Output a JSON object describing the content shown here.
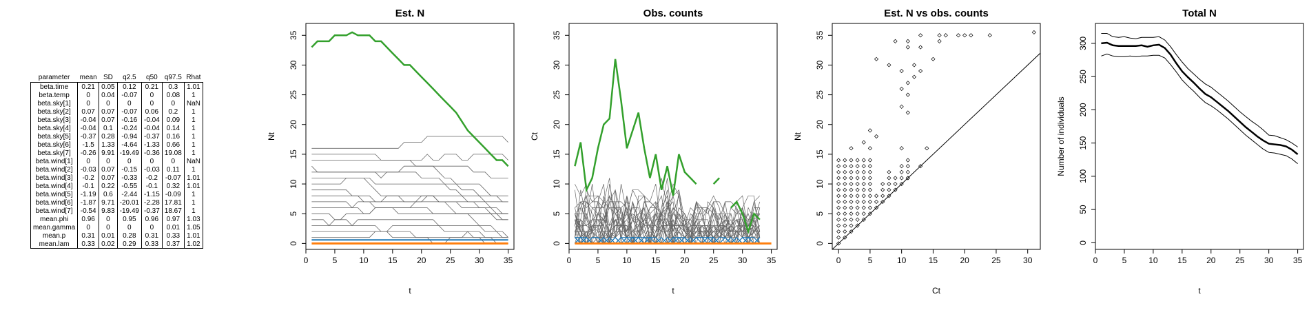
{
  "table": {
    "headers": [
      "parameter",
      "mean",
      "SD",
      "q2.5",
      "q50",
      "q97.5",
      "Rhat"
    ],
    "rows": [
      [
        "beta.time",
        "0.21",
        "0.05",
        "0.12",
        "0.21",
        "0.3",
        "1.01"
      ],
      [
        "beta.temp",
        "0",
        "0.04",
        "-0.07",
        "0",
        "0.08",
        "1"
      ],
      [
        "beta.sky[1]",
        "0",
        "0",
        "0",
        "0",
        "0",
        "NaN"
      ],
      [
        "beta.sky[2]",
        "0.07",
        "0.07",
        "-0.07",
        "0.06",
        "0.2",
        "1"
      ],
      [
        "beta.sky[3]",
        "-0.04",
        "0.07",
        "-0.16",
        "-0.04",
        "0.09",
        "1"
      ],
      [
        "beta.sky[4]",
        "-0.04",
        "0.1",
        "-0.24",
        "-0.04",
        "0.14",
        "1"
      ],
      [
        "beta.sky[5]",
        "-0.37",
        "0.28",
        "-0.94",
        "-0.37",
        "0.16",
        "1"
      ],
      [
        "beta.sky[6]",
        "-1.5",
        "1.33",
        "-4.64",
        "-1.33",
        "0.66",
        "1"
      ],
      [
        "beta.sky[7]",
        "-0.26",
        "9.91",
        "-19.49",
        "-0.36",
        "19.08",
        "1"
      ],
      [
        "beta.wind[1]",
        "0",
        "0",
        "0",
        "0",
        "0",
        "NaN"
      ],
      [
        "beta.wind[2]",
        "-0.03",
        "0.07",
        "-0.15",
        "-0.03",
        "0.11",
        "1"
      ],
      [
        "beta.wind[3]",
        "-0.2",
        "0.07",
        "-0.33",
        "-0.2",
        "-0.07",
        "1.01"
      ],
      [
        "beta.wind[4]",
        "-0.1",
        "0.22",
        "-0.55",
        "-0.1",
        "0.32",
        "1.01"
      ],
      [
        "beta.wind[5]",
        "-1.19",
        "0.6",
        "-2.44",
        "-1.15",
        "-0.09",
        "1"
      ],
      [
        "beta.wind[6]",
        "-1.87",
        "9.71",
        "-20.01",
        "-2.28",
        "17.81",
        "1"
      ],
      [
        "beta.wind[7]",
        "-0.54",
        "9.83",
        "-19.49",
        "-0.37",
        "18.67",
        "1"
      ],
      [
        "mean.phi",
        "0.96",
        "0",
        "0.95",
        "0.96",
        "0.97",
        "1.03"
      ],
      [
        "mean.gamma",
        "0",
        "0",
        "0",
        "0",
        "0.01",
        "1.05"
      ],
      [
        "mean.p",
        "0.31",
        "0.01",
        "0.28",
        "0.31",
        "0.33",
        "1.01"
      ],
      [
        "mean.lam",
        "0.33",
        "0.02",
        "0.29",
        "0.33",
        "0.37",
        "1.02"
      ]
    ]
  },
  "colors": {
    "green": "#33a02c",
    "orange": "#ff7f0e",
    "blue": "#1f77b4",
    "gray": "#555555",
    "black": "#000000"
  },
  "chart_data": [
    {
      "type": "line",
      "title": "Est. N",
      "xlabel": "t",
      "ylabel": "Nt",
      "xlim": [
        0,
        36
      ],
      "ylim": [
        -1,
        37
      ],
      "xticks": [
        0,
        5,
        10,
        15,
        20,
        25,
        30,
        35
      ],
      "yticks": [
        0,
        5,
        10,
        15,
        20,
        25,
        30,
        35
      ],
      "highlight": {
        "x": [
          1,
          2,
          3,
          4,
          5,
          6,
          7,
          8,
          9,
          10,
          11,
          12,
          13,
          14,
          15,
          16,
          17,
          18,
          19,
          20,
          21,
          22,
          23,
          24,
          25,
          26,
          27,
          28,
          29,
          30,
          31,
          32,
          33,
          34,
          35
        ],
        "y": [
          33,
          34,
          34,
          34,
          35,
          35,
          35,
          35.5,
          35,
          35,
          35,
          34,
          34,
          33,
          32,
          31,
          30,
          30,
          29,
          28,
          27,
          26,
          25,
          24,
          23,
          22,
          20.5,
          19,
          18,
          17,
          16,
          15,
          14,
          14,
          13
        ]
      },
      "background_levels": [
        16,
        15,
        14,
        13,
        12,
        11,
        10,
        9,
        8,
        7,
        6,
        5,
        4,
        3,
        2,
        1
      ]
    },
    {
      "type": "line",
      "title": "Obs. counts",
      "xlabel": "t",
      "ylabel": "Ct",
      "xlim": [
        0,
        36
      ],
      "ylim": [
        -1,
        37
      ],
      "xticks": [
        0,
        5,
        10,
        15,
        20,
        25,
        30,
        35
      ],
      "yticks": [
        0,
        5,
        10,
        15,
        20,
        25,
        30,
        35
      ],
      "highlight_segments": [
        {
          "x": [
            1,
            2,
            3,
            4,
            5,
            6,
            7,
            8,
            9,
            10,
            11,
            12,
            13,
            14,
            15,
            16,
            17,
            18,
            19,
            20,
            21,
            22
          ],
          "y": [
            13,
            17,
            9,
            11,
            16,
            20,
            21,
            31,
            24,
            16,
            19,
            22,
            16,
            11,
            15,
            9,
            13,
            8,
            15,
            12,
            11,
            10
          ]
        },
        {
          "x": [
            25,
            26
          ],
          "y": [
            10,
            11
          ]
        },
        {
          "x": [
            28,
            29,
            30,
            31,
            32,
            33
          ],
          "y": [
            6,
            7,
            5,
            2,
            5,
            4
          ]
        }
      ]
    },
    {
      "type": "scatter",
      "title": "Est. N vs obs. counts",
      "xlabel": "Ct",
      "ylabel": "Nt",
      "xlim": [
        -1,
        32
      ],
      "ylim": [
        -1,
        37
      ],
      "xticks": [
        0,
        5,
        10,
        15,
        20,
        25,
        30
      ],
      "yticks": [
        0,
        5,
        10,
        15,
        20,
        25,
        30,
        35
      ],
      "points": [
        [
          9,
          34
        ],
        [
          11,
          34
        ],
        [
          13,
          35
        ],
        [
          16,
          35
        ],
        [
          17,
          35
        ],
        [
          19,
          35
        ],
        [
          20,
          35
        ],
        [
          21,
          35
        ],
        [
          24,
          35
        ],
        [
          31,
          35.5
        ],
        [
          11,
          33
        ],
        [
          13,
          33
        ],
        [
          16,
          34
        ],
        [
          6,
          31
        ],
        [
          8,
          30
        ],
        [
          12,
          30
        ],
        [
          15,
          31
        ],
        [
          10,
          29
        ],
        [
          13,
          29
        ],
        [
          12,
          28
        ],
        [
          11,
          27
        ],
        [
          10,
          26
        ],
        [
          11,
          25
        ],
        [
          10,
          23
        ],
        [
          11,
          22
        ],
        [
          5,
          19
        ],
        [
          6,
          18
        ],
        [
          4,
          17
        ],
        [
          2,
          16
        ],
        [
          5,
          16
        ],
        [
          10,
          16
        ],
        [
          14,
          16
        ],
        [
          11,
          11
        ],
        [
          13,
          13
        ]
      ],
      "ref_line": [
        [
          -1,
          -1
        ],
        [
          32,
          32
        ]
      ]
    },
    {
      "type": "line",
      "title": "Total N",
      "xlabel": "t",
      "ylabel": "Number of individuals",
      "xlim": [
        0,
        36
      ],
      "ylim": [
        -10,
        330
      ],
      "xticks": [
        0,
        5,
        10,
        15,
        20,
        25,
        30,
        35
      ],
      "yticks": [
        0,
        50,
        100,
        150,
        200,
        250,
        300
      ],
      "series": [
        {
          "y": [
            300,
            301,
            297,
            296,
            296,
            296,
            296,
            297,
            295,
            297,
            298,
            293,
            283,
            270,
            258,
            249,
            241,
            232,
            224,
            219,
            212,
            205,
            198,
            190,
            182,
            174,
            167,
            160,
            154,
            149,
            148,
            147,
            145,
            140,
            133
          ]
        },
        {
          "y": [
            315,
            315,
            310,
            309,
            310,
            308,
            307,
            309,
            309,
            309,
            310,
            305,
            295,
            283,
            272,
            262,
            254,
            246,
            239,
            234,
            227,
            220,
            213,
            205,
            197,
            190,
            183,
            177,
            170,
            162,
            161,
            158,
            155,
            150,
            144
          ]
        },
        {
          "y": [
            281,
            284,
            281,
            280,
            280,
            281,
            280,
            281,
            281,
            282,
            282,
            278,
            268,
            257,
            245,
            236,
            228,
            219,
            211,
            206,
            200,
            193,
            186,
            178,
            170,
            162,
            155,
            148,
            141,
            136,
            135,
            133,
            131,
            126,
            119
          ]
        }
      ]
    }
  ]
}
